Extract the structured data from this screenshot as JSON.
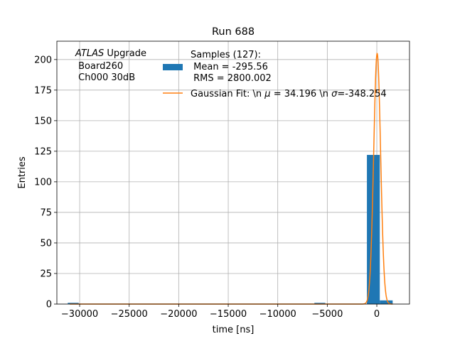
{
  "chart_data": {
    "type": "bar",
    "title": "Run 688",
    "xlabel": "time [ns]",
    "ylabel": "Entries",
    "xlim": [
      -32300,
      3300
    ],
    "ylim": [
      0,
      215
    ],
    "xticks": [
      -30000,
      -25000,
      -20000,
      -15000,
      -10000,
      -5000,
      0
    ],
    "xtick_labels": [
      "−30000",
      "−25000",
      "−20000",
      "−15000",
      "−10000",
      "−5000",
      "0"
    ],
    "yticks": [
      0,
      25,
      50,
      75,
      100,
      125,
      150,
      175,
      200
    ],
    "ytick_labels": [
      "0",
      "25",
      "50",
      "75",
      "100",
      "125",
      "150",
      "175",
      "200"
    ],
    "grid": true,
    "legend_position": "top-right",
    "histogram": {
      "name": "Samples (127):\n Mean = -295.56\n RMS = 2800.002",
      "color": "#1f77b4",
      "bins": [
        {
          "x0": -31200,
          "x1": -30100,
          "count": 1
        },
        {
          "x0": -6300,
          "x1": -5200,
          "count": 1
        },
        {
          "x0": -1000,
          "x1": 300,
          "count": 122
        },
        {
          "x0": 300,
          "x1": 1600,
          "count": 3
        }
      ]
    },
    "fit": {
      "name": "Gaussian Fit: \\n μ = 34.196 \\n σ=-348.254",
      "type": "gaussian",
      "mu": 34.196,
      "sigma": -348.254,
      "amplitude": 205,
      "color": "#ff7f0e"
    },
    "annotation": {
      "line1_italic": "ATLAS",
      "line1_rest": " Upgrade",
      "line2": " Board260",
      "line3": " Ch000 30dB"
    },
    "legend_lines": {
      "samples": [
        "Samples (127):",
        " Mean = -295.56",
        " RMS = 2800.002"
      ],
      "fit_label": "Gaussian Fit: \\n ",
      "fit_mu_symbol": "μ",
      "fit_mu_rest": " = 34.196 \\n ",
      "fit_sigma_symbol": "σ",
      "fit_sigma_rest": "=-348.254"
    }
  }
}
